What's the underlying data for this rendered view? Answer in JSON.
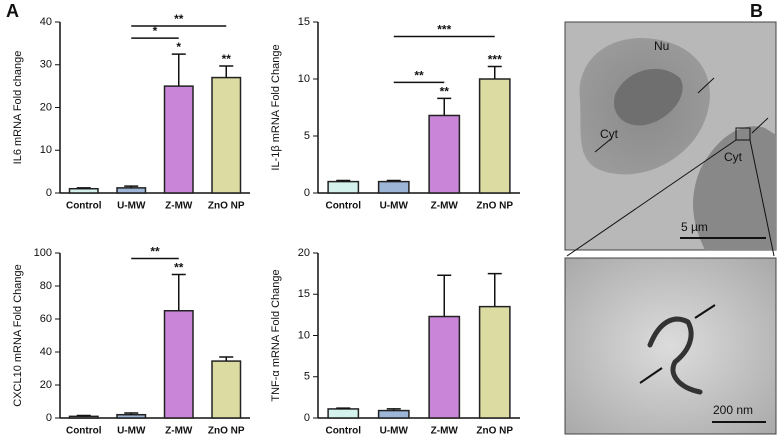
{
  "panel_labels": [
    "A",
    "B"
  ],
  "chart_data": [
    {
      "type": "bar",
      "y_label": "IL6 mRNA Fold change",
      "categories": [
        "Control",
        "U-MW",
        "Z-MW",
        "ZnO NP"
      ],
      "colors": [
        "#d4f1ec",
        "#9db5d6",
        "#c985d8",
        "#dcdca2"
      ],
      "values": [
        1,
        1.2,
        25,
        27
      ],
      "errors": [
        0.2,
        0.4,
        7.5,
        2.7
      ],
      "significance": [
        null,
        null,
        "*",
        "**"
      ],
      "brackets": [
        {
          "from": "U-MW",
          "to": "Z-MW",
          "label": "*"
        },
        {
          "from": "U-MW",
          "to": "ZnO NP",
          "label": "**"
        }
      ],
      "ylim": [
        0,
        40
      ],
      "yticks": [
        0,
        10,
        20,
        30,
        40
      ]
    },
    {
      "type": "bar",
      "y_label": "IL-1β mRNA Fold  Change",
      "categories": [
        "Control",
        "U-MW",
        "Z-MW",
        "ZnO NP"
      ],
      "colors": [
        "#d4f1ec",
        "#9db5d6",
        "#c985d8",
        "#dcdca2"
      ],
      "values": [
        1,
        1,
        6.8,
        10
      ],
      "errors": [
        0.1,
        0.1,
        1.5,
        1.1
      ],
      "significance": [
        null,
        null,
        "**",
        "***"
      ],
      "brackets": [
        {
          "from": "U-MW",
          "to": "Z-MW",
          "label": "**"
        },
        {
          "from": "U-MW",
          "to": "ZnO NP",
          "label": "***"
        }
      ],
      "ylim": [
        0,
        15
      ],
      "yticks": [
        0,
        5,
        10,
        15
      ]
    },
    {
      "type": "bar",
      "y_label": "CXCL10 mRNA Fold  Change",
      "categories": [
        "Control",
        "U-MW",
        "Z-MW",
        "ZnO NP"
      ],
      "colors": [
        "#d4f1ec",
        "#9db5d6",
        "#c985d8",
        "#dcdca2"
      ],
      "values": [
        1,
        2,
        65,
        34.5
      ],
      "errors": [
        0.5,
        1,
        22,
        2.5
      ],
      "significance": [
        null,
        null,
        "**",
        null
      ],
      "brackets": [
        {
          "from": "U-MW",
          "to": "Z-MW",
          "label": "**"
        }
      ],
      "ylim": [
        0,
        100
      ],
      "yticks": [
        0,
        20,
        40,
        60,
        80,
        100
      ]
    },
    {
      "type": "bar",
      "y_label": "TNF-α mRNA Fold  Change",
      "categories": [
        "Control",
        "U-MW",
        "Z-MW",
        "ZnO NP"
      ],
      "colors": [
        "#d4f1ec",
        "#9db5d6",
        "#c985d8",
        "#dcdca2"
      ],
      "values": [
        1.1,
        0.9,
        12.3,
        13.5
      ],
      "errors": [
        0.1,
        0.2,
        5,
        4
      ],
      "ylim": [
        0,
        20
      ],
      "yticks": [
        0,
        5,
        10,
        15,
        20
      ]
    }
  ],
  "micrographs": {
    "overview": {
      "labels": [
        "Nu",
        "Cyt",
        "Cyt"
      ],
      "scale_bar": "5 µm"
    },
    "detail": {
      "scale_bar": "200 nm"
    }
  }
}
